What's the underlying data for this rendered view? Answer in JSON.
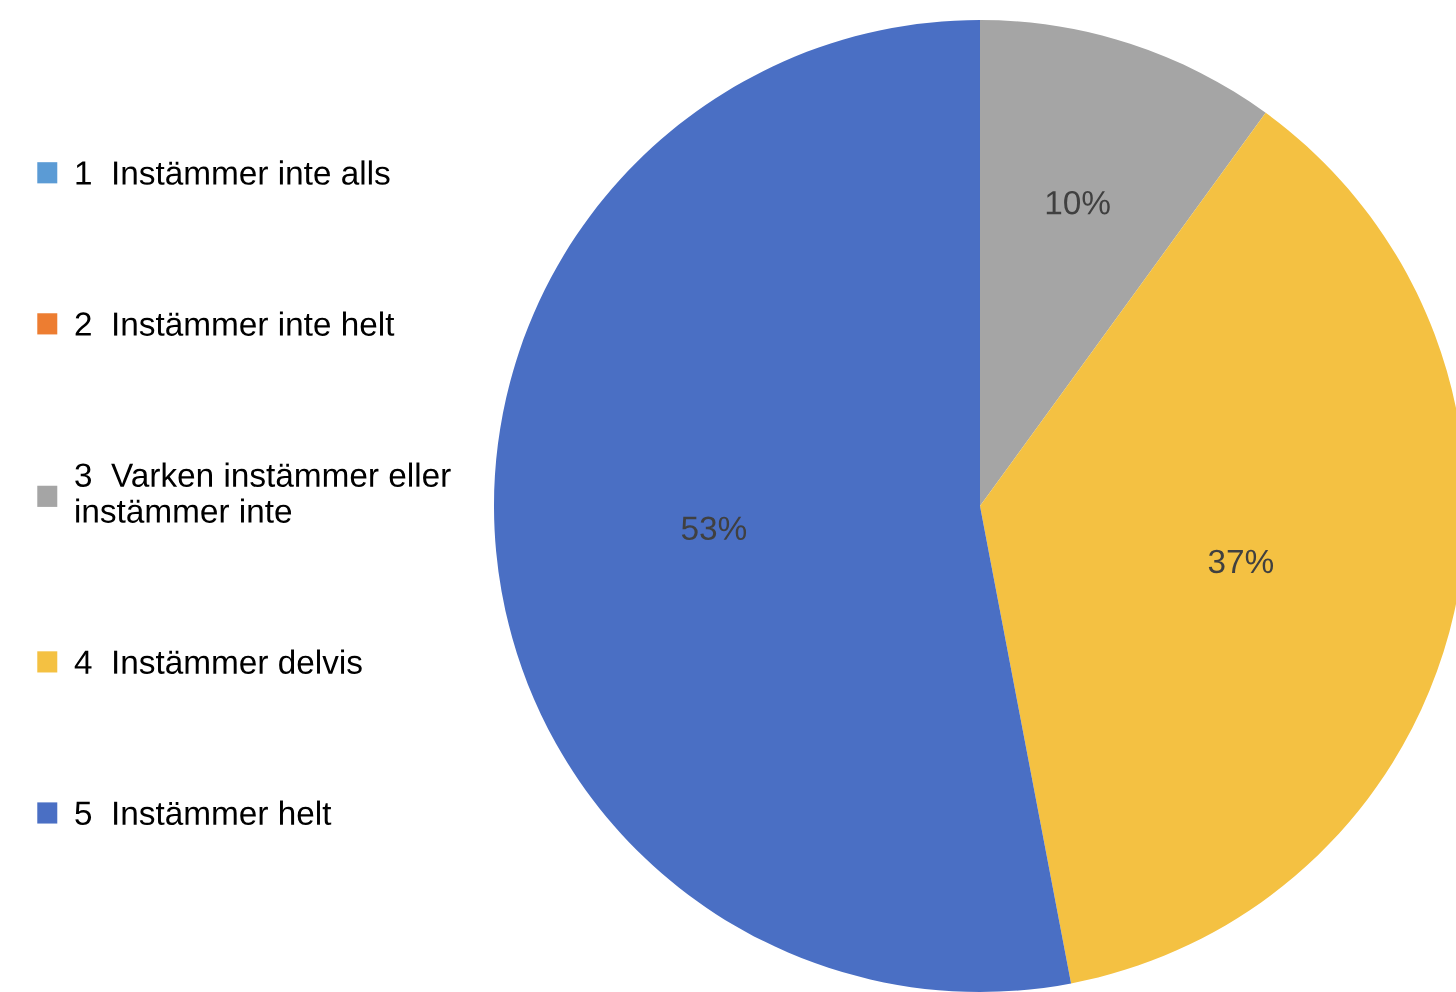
{
  "chart_data": {
    "type": "pie",
    "categories": [
      "1  Instämmer inte alls",
      "2  Instämmer inte helt",
      "3  Varken instämmer eller\ninstämmer inte",
      "4  Instämmer delvis",
      "5  Instämmer helt"
    ],
    "values": [
      0,
      0,
      10,
      37,
      53
    ],
    "colors": [
      "#5b9bd5",
      "#ed7d31",
      "#a5a5a5",
      "#f4c142",
      "#4a6fc4"
    ],
    "value_labels": [
      null,
      null,
      "10%",
      "37%",
      "53%"
    ],
    "legend": "left"
  }
}
